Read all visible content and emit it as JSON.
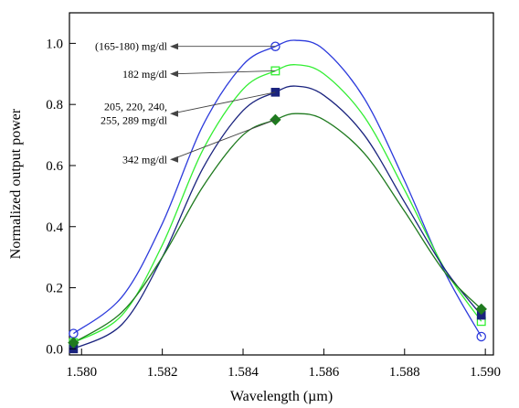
{
  "chart_data": {
    "type": "line",
    "title": "",
    "xlabel": "Wavelength (µm)",
    "ylabel": "Normalized output power",
    "xlim": [
      1.5797,
      1.5902
    ],
    "ylim": [
      -0.02,
      1.1
    ],
    "xticks": [
      1.58,
      1.582,
      1.584,
      1.586,
      1.588,
      1.59
    ],
    "xtick_labels": [
      "1.580",
      "1.582",
      "1.584",
      "1.586",
      "1.588",
      "1.590"
    ],
    "yticks": [
      0.0,
      0.2,
      0.4,
      0.6,
      0.8,
      1.0
    ],
    "ytick_labels": [
      "0.0",
      "0.2",
      "0.4",
      "0.6",
      "0.8",
      "1.0"
    ],
    "grid": false,
    "legend": "none",
    "series": [
      {
        "color": "#2d3bdc",
        "marker": "circle-open",
        "x": [
          1.5798,
          1.581,
          1.582,
          1.583,
          1.584,
          1.5848,
          1.5853,
          1.586,
          1.587,
          1.588,
          1.589,
          1.5899
        ],
        "y": [
          0.05,
          0.17,
          0.41,
          0.73,
          0.93,
          0.99,
          1.01,
          0.98,
          0.82,
          0.55,
          0.25,
          0.04
        ],
        "markers_at": [
          {
            "x": 1.5798,
            "y": 0.05
          },
          {
            "x": 1.5848,
            "y": 0.99
          },
          {
            "x": 1.5899,
            "y": 0.04
          }
        ]
      },
      {
        "color": "#33ee33",
        "marker": "square-open",
        "x": [
          1.5798,
          1.581,
          1.582,
          1.583,
          1.584,
          1.5848,
          1.5853,
          1.586,
          1.587,
          1.588,
          1.589,
          1.5899
        ],
        "y": [
          0.02,
          0.11,
          0.34,
          0.65,
          0.85,
          0.91,
          0.93,
          0.9,
          0.76,
          0.52,
          0.26,
          0.09
        ],
        "markers_at": [
          {
            "x": 1.5798,
            "y": 0.02
          },
          {
            "x": 1.5848,
            "y": 0.91
          },
          {
            "x": 1.5899,
            "y": 0.09
          }
        ]
      },
      {
        "color": "#1a237e",
        "marker": "square-filled",
        "x": [
          1.5798,
          1.581,
          1.582,
          1.583,
          1.584,
          1.5848,
          1.5853,
          1.586,
          1.587,
          1.588,
          1.589,
          1.5899
        ],
        "y": [
          0.0,
          0.08,
          0.3,
          0.59,
          0.78,
          0.84,
          0.86,
          0.83,
          0.7,
          0.48,
          0.26,
          0.11
        ],
        "markers_at": [
          {
            "x": 1.5798,
            "y": 0.0
          },
          {
            "x": 1.5848,
            "y": 0.84
          },
          {
            "x": 1.5899,
            "y": 0.11
          }
        ]
      },
      {
        "color": "#1f7a1f",
        "marker": "diamond-filled",
        "x": [
          1.5798,
          1.581,
          1.582,
          1.583,
          1.584,
          1.5848,
          1.5853,
          1.586,
          1.587,
          1.588,
          1.589,
          1.5899
        ],
        "y": [
          0.02,
          0.12,
          0.3,
          0.53,
          0.7,
          0.75,
          0.77,
          0.75,
          0.64,
          0.45,
          0.25,
          0.13
        ],
        "markers_at": [
          {
            "x": 1.5798,
            "y": 0.02
          },
          {
            "x": 1.5848,
            "y": 0.75
          },
          {
            "x": 1.5899,
            "y": 0.13
          }
        ]
      }
    ],
    "annotations": [
      {
        "lines": [
          "(165-180) mg/dl"
        ],
        "points_to": {
          "x": 1.5848,
          "y": 0.99
        },
        "arrow_y": 0.99
      },
      {
        "lines": [
          "182 mg/dl"
        ],
        "points_to": {
          "x": 1.5848,
          "y": 0.91
        },
        "arrow_y": 0.9
      },
      {
        "lines": [
          "205, 220, 240,",
          "255, 289 mg/dl"
        ],
        "points_to": {
          "x": 1.5848,
          "y": 0.84
        },
        "arrow_y": 0.77
      },
      {
        "lines": [
          "342 mg/dl"
        ],
        "points_to": {
          "x": 1.5848,
          "y": 0.75
        },
        "arrow_y": 0.62
      }
    ]
  }
}
